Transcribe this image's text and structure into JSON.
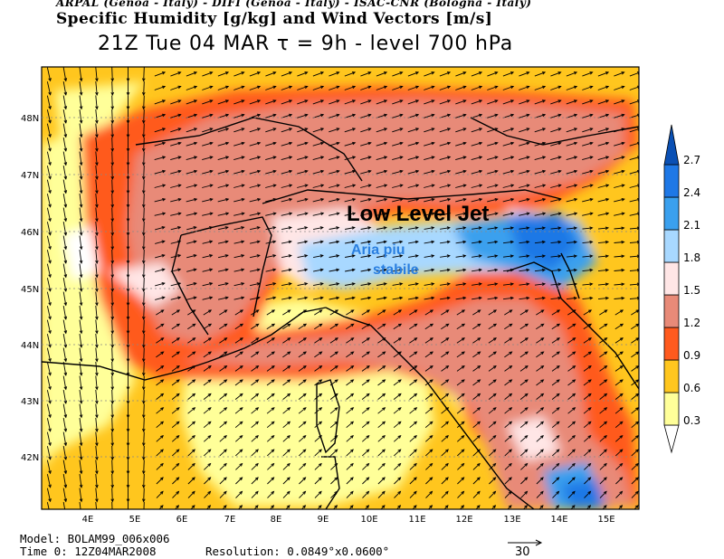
{
  "header": {
    "credits": "ARPAL (Genoa - Italy)  -  DIFI (Genoa - Italy)  -  ISAC-CNR (Bologna - Italy)",
    "title": "Specific Humidity [g/kg] and Wind Vectors [m/s]",
    "subtitle": "21Z Tue 04 MAR   τ = 9h   -   level 700 hPa"
  },
  "map": {
    "lon_labels": [
      "4E",
      "5E",
      "6E",
      "7E",
      "8E",
      "9E",
      "10E",
      "11E",
      "12E",
      "13E",
      "14E",
      "15E"
    ],
    "lat_labels": [
      "48N",
      "47N",
      "46N",
      "45N",
      "44N",
      "43N",
      "42N"
    ],
    "annotation_jet": "Low Level Jet",
    "annotation_stable_line1": "Aria piu",
    "annotation_stable_line2": "stabile",
    "annotation_jet_color": "#000000",
    "annotation_stable_color": "#2a7fe0"
  },
  "colorbar": {
    "levels": [
      "0.3",
      "0.6",
      "0.9",
      "1.2",
      "1.5",
      "1.8",
      "2.1",
      "2.4",
      "2.7"
    ],
    "colors": [
      "#ffff99",
      "#ffc61e",
      "#ff5a1e",
      "#e88a78",
      "#ffe6e6",
      "#a8d8ff",
      "#3aa0ee",
      "#1e78e6",
      "#0a50b4",
      "#ffffff"
    ]
  },
  "footer": {
    "model": "Model: BOLAM99_006x006",
    "time0": "Time 0: 12Z04MAR2008",
    "resolution": "Resolution: 0.0849°x0.0600°",
    "ref_vector_label": "30"
  }
}
